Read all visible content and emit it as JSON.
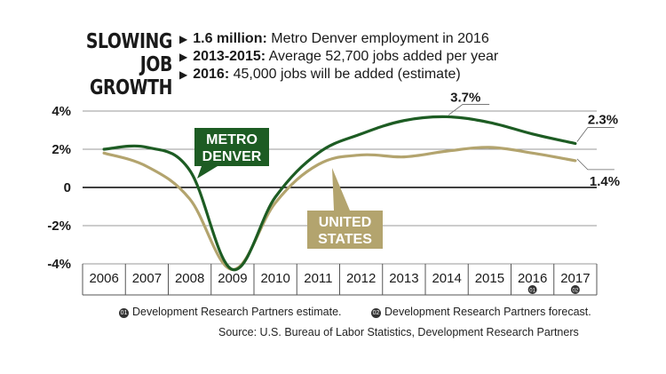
{
  "header": {
    "title_line1": "SLOWING JOB",
    "title_line2": "GROWTH",
    "facts": [
      {
        "bold": "1.6 million:",
        "text": " Metro Denver employment in 2016"
      },
      {
        "bold": "2013-2015:",
        "text": " Average 52,700 jobs added per year"
      },
      {
        "bold": "2016:",
        "text": " 45,000 jobs will be added (estimate)"
      }
    ]
  },
  "footnotes": {
    "note1_marker": "01",
    "note1": "Development Research Partners estimate.",
    "note2_marker": "02",
    "note2": "Development Research Partners forecast.",
    "source": "Source: U.S. Bureau of Labor Statistics, Development Research Partners"
  },
  "chart_data": {
    "type": "line",
    "title": "SLOWING JOB GROWTH",
    "xlabel": "",
    "ylabel": "",
    "categories": [
      "2006",
      "2007",
      "2008",
      "2009",
      "2010",
      "2011",
      "2012",
      "2013",
      "2014",
      "2015",
      "2016",
      "2017"
    ],
    "category_markers": [
      "",
      "",
      "",
      "",
      "",
      "",
      "",
      "",
      "",
      "",
      "01",
      "02"
    ],
    "y_ticks": [
      {
        "value": 4,
        "label": "4%"
      },
      {
        "value": 2,
        "label": "2%"
      },
      {
        "value": 0,
        "label": "0"
      },
      {
        "value": -2,
        "label": "-2%"
      },
      {
        "value": -4,
        "label": "-4%"
      }
    ],
    "ylim": [
      -4,
      4
    ],
    "grid": true,
    "series": [
      {
        "name": "METRO DENVER",
        "name_line1": "METRO",
        "name_line2": "DENVER",
        "color": "#1d5c23",
        "values": [
          2.0,
          2.1,
          0.9,
          -4.3,
          -0.5,
          1.8,
          2.8,
          3.5,
          3.7,
          3.4,
          2.8,
          2.3
        ]
      },
      {
        "name": "UNITED STATES",
        "name_line1": "UNITED",
        "name_line2": "STATES",
        "color": "#b3a46e",
        "values": [
          1.8,
          1.1,
          -0.6,
          -4.3,
          -0.8,
          1.2,
          1.7,
          1.6,
          1.9,
          2.1,
          1.8,
          1.4
        ]
      }
    ],
    "annotations": [
      {
        "series": 0,
        "index": 8,
        "label": "3.7%"
      },
      {
        "series": 0,
        "index": 11,
        "label": "2.3%"
      },
      {
        "series": 1,
        "index": 11,
        "label": "1.4%"
      }
    ]
  }
}
